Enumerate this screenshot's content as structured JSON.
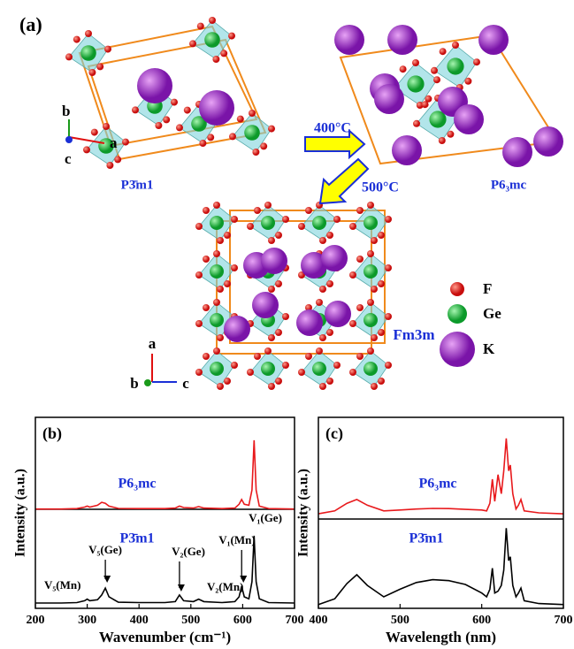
{
  "panel_a": {
    "label": "(a)",
    "structures": [
      "P3̄m1",
      "P6₃mc",
      "Fm3m"
    ],
    "arrows": [
      "400°C",
      "500°C"
    ],
    "axes_1": [
      "b",
      "a",
      "c"
    ],
    "axes_2": [
      "a",
      "b",
      "c"
    ],
    "legend": [
      "F",
      "Ge",
      "K"
    ]
  },
  "chart_data": [
    {
      "type": "line",
      "panel_label": "(b)",
      "x_label": "Wavenumber (cm⁻¹)",
      "y_label": "Intensity (a.u.)",
      "x": [
        200,
        250,
        280,
        295,
        300,
        305,
        320,
        328,
        335,
        342,
        360,
        400,
        450,
        470,
        478,
        486,
        505,
        515,
        525,
        560,
        585,
        593,
        598,
        603,
        612,
        618,
        622,
        626,
        632,
        650,
        700
      ],
      "xlim": [
        200,
        700
      ],
      "xticks": [
        200,
        300,
        400,
        500,
        600,
        700
      ],
      "ylim": [
        0,
        100
      ],
      "series": [
        {
          "name": "P6₃mc",
          "color": "#e8191c",
          "values": [
            52,
            52,
            52.2,
            53,
            53.5,
            53,
            54,
            55.5,
            55,
            53.5,
            52.3,
            52.2,
            52.2,
            52.5,
            53.5,
            52.8,
            52.5,
            53.3,
            52.5,
            52.2,
            52.5,
            54.5,
            57,
            54.5,
            54,
            62,
            88,
            62,
            53.5,
            52.2,
            52
          ]
        },
        {
          "name": "P3̄m1",
          "color": "#000000",
          "values": [
            2.8,
            2.8,
            3,
            4,
            4.8,
            4,
            4.5,
            7,
            10.6,
            6,
            3.2,
            3,
            3,
            3.5,
            7,
            4,
            3.5,
            4.8,
            3.5,
            3,
            3.5,
            6,
            11.6,
            6,
            5,
            14,
            38,
            14,
            5,
            3,
            2.8
          ]
        }
      ],
      "annotations": [
        "V₅(Mn)",
        "V₅(Ge)",
        "V₂(Ge)",
        "V₂(Mn)",
        "V₁(Mn)",
        "V₁(Ge)"
      ]
    },
    {
      "type": "line",
      "panel_label": "(c)",
      "x_label": "Wavelength (nm)",
      "y_label": "Intensity (a.u.)",
      "x": [
        400,
        420,
        435,
        447,
        460,
        480,
        500,
        520,
        540,
        560,
        580,
        600,
        606,
        610,
        613,
        616,
        620,
        624,
        627,
        630,
        633,
        635,
        638,
        642,
        645,
        648,
        652,
        670,
        700
      ],
      "xlim": [
        400,
        700
      ],
      "xticks": [
        400,
        500,
        600,
        700
      ],
      "ylim": [
        0,
        100
      ],
      "series": [
        {
          "name": "P6₃mc",
          "color": "#e8191c",
          "values": [
            49.5,
            51,
            55,
            57,
            54,
            51,
            51.5,
            52,
            52.3,
            52.2,
            51.8,
            51.5,
            51,
            55,
            67.6,
            56,
            70,
            60,
            72,
            89,
            72,
            75,
            60,
            52,
            54,
            57,
            51,
            50,
            49.5
          ]
        },
        {
          "name": "P3̄m1",
          "color": "#000000",
          "values": [
            2,
            5,
            13,
            17.6,
            12,
            6,
            10,
            13.5,
            15,
            14.5,
            12.5,
            8,
            6,
            10,
            21,
            8,
            9,
            12,
            20,
            42,
            25,
            27,
            12,
            6,
            8,
            10.6,
            4,
            2.5,
            2
          ]
        }
      ]
    }
  ]
}
